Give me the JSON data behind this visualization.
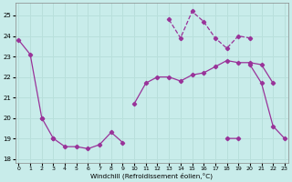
{
  "xlabel": "Windchill (Refroidissement éolien,°C)",
  "background_color": "#c8ecea",
  "grid_color": "#b8dfdb",
  "line_color": "#993399",
  "x": [
    0,
    1,
    2,
    3,
    4,
    5,
    6,
    7,
    8,
    9,
    10,
    11,
    12,
    13,
    14,
    15,
    16,
    17,
    18,
    19,
    20,
    21,
    22,
    23
  ],
  "line_down": [
    23.8,
    23.1,
    20.0,
    null,
    null,
    null,
    null,
    null,
    null,
    null,
    null,
    null,
    null,
    null,
    null,
    null,
    null,
    null,
    null,
    null,
    null,
    null,
    null,
    null
  ],
  "line_up": [
    null,
    null,
    20.0,
    19.0,
    null,
    null,
    null,
    null,
    null,
    null,
    20.7,
    21.7,
    22.0,
    22.0,
    21.8,
    22.1,
    22.2,
    22.5,
    22.8,
    22.7,
    22.7,
    22.6,
    21.7,
    null
  ],
  "line_jagged": [
    null,
    null,
    null,
    null,
    null,
    null,
    null,
    null,
    null,
    null,
    null,
    null,
    null,
    24.8,
    23.9,
    25.2,
    24.7,
    23.9,
    23.4,
    24.0,
    23.9,
    null,
    null,
    null
  ],
  "line_flat": [
    null,
    null,
    null,
    19.0,
    18.6,
    18.6,
    18.5,
    18.7,
    19.3,
    18.8,
    null,
    null,
    null,
    null,
    null,
    null,
    null,
    null,
    19.0,
    19.0,
    null,
    null,
    null,
    null
  ],
  "line_end": [
    null,
    null,
    null,
    null,
    null,
    null,
    null,
    null,
    null,
    null,
    null,
    null,
    null,
    null,
    null,
    null,
    null,
    null,
    null,
    null,
    22.6,
    21.7,
    19.6,
    19.0
  ],
  "ylim": [
    17.8,
    25.6
  ],
  "xlim": [
    -0.3,
    23.3
  ],
  "yticks": [
    18,
    19,
    20,
    21,
    22,
    23,
    24,
    25
  ],
  "xticks": [
    0,
    1,
    2,
    3,
    4,
    5,
    6,
    7,
    8,
    9,
    10,
    11,
    12,
    13,
    14,
    15,
    16,
    17,
    18,
    19,
    20,
    21,
    22,
    23
  ]
}
